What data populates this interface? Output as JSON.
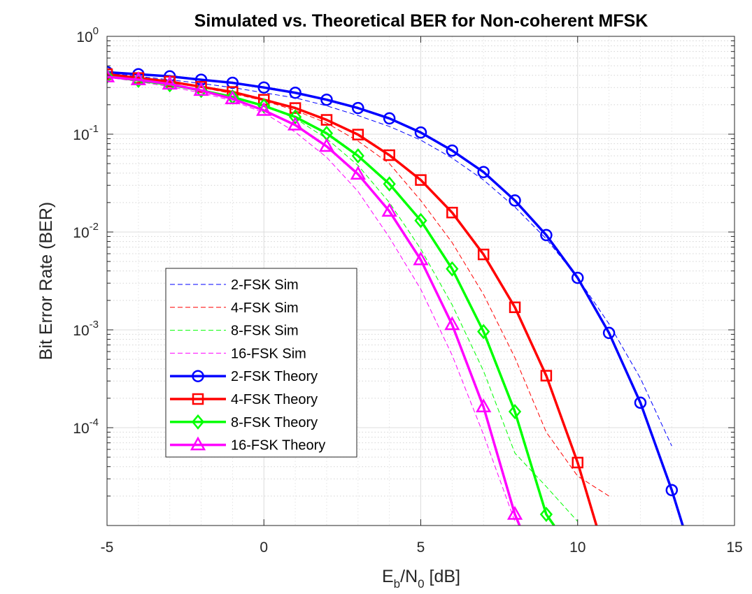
{
  "chart_data": {
    "type": "line",
    "title": "Simulated vs. Theoretical BER for Non-coherent MFSK",
    "xlabel": {
      "main": "E",
      "sub1": "b",
      "mid": "/N",
      "sub2": "0",
      "tail": " [dB]"
    },
    "ylabel": "Bit Error Rate (BER)",
    "xlim": [
      -5,
      15
    ],
    "ylim": [
      1e-05,
      1
    ],
    "yscale": "log",
    "grid": true,
    "minor_grid": true,
    "legend_position": "lower-left",
    "x_ticks": [
      "-5",
      "0",
      "5",
      "10",
      "15"
    ],
    "y_ticks": [
      {
        "base": "10",
        "exp": "0",
        "value": 1
      },
      {
        "base": "10",
        "exp": "-1",
        "value": 0.1
      },
      {
        "base": "10",
        "exp": "-2",
        "value": 0.01
      },
      {
        "base": "10",
        "exp": "-3",
        "value": 0.001
      },
      {
        "base": "10",
        "exp": "-4",
        "value": 0.0001
      }
    ],
    "series": [
      {
        "name": "2-FSK Sim",
        "style": "dashed",
        "color": "#0000ff",
        "marker": "none",
        "x": [
          -5,
          -4,
          -3,
          -2,
          -1,
          0,
          1,
          2,
          3,
          4,
          5,
          6,
          7,
          8,
          9,
          10,
          11,
          12,
          13
        ],
        "y": [
          0.42,
          0.39,
          0.36,
          0.33,
          0.3,
          0.265,
          0.235,
          0.195,
          0.155,
          0.12,
          0.087,
          0.057,
          0.034,
          0.018,
          0.0085,
          0.0034,
          0.00115,
          0.00032,
          6.5e-05
        ]
      },
      {
        "name": "4-FSK Sim",
        "style": "dashed",
        "color": "#ff0000",
        "marker": "none",
        "x": [
          -5,
          -4,
          -3,
          -2,
          -1,
          0,
          1,
          2,
          3,
          4,
          5,
          6,
          7,
          8,
          9,
          10,
          11
        ],
        "y": [
          0.4,
          0.37,
          0.335,
          0.3,
          0.26,
          0.22,
          0.175,
          0.13,
          0.085,
          0.05,
          0.021,
          0.0078,
          0.0023,
          0.00052,
          9e-05,
          3.2e-05,
          2e-05
        ]
      },
      {
        "name": "8-FSK Sim",
        "style": "dashed",
        "color": "#00ff00",
        "marker": "none",
        "x": [
          -5,
          -4,
          -3,
          -2,
          -1,
          0,
          1,
          2,
          3,
          4,
          5,
          6,
          7,
          8,
          9,
          10
        ],
        "y": [
          0.39,
          0.36,
          0.32,
          0.285,
          0.24,
          0.195,
          0.145,
          0.09,
          0.048,
          0.02,
          0.0067,
          0.0018,
          0.00038,
          5.5e-05,
          2.5e-05,
          1.1e-05
        ]
      },
      {
        "name": "16-FSK Sim",
        "style": "dashed",
        "color": "#ff00ff",
        "marker": "none",
        "x": [
          -5,
          -4,
          -3,
          -2,
          -1,
          0,
          1,
          2,
          3,
          4,
          5,
          6,
          7,
          8
        ],
        "y": [
          0.38,
          0.345,
          0.305,
          0.265,
          0.22,
          0.165,
          0.105,
          0.058,
          0.026,
          0.0088,
          0.0026,
          0.00055,
          8.5e-05,
          1.1e-05
        ]
      },
      {
        "name": "2-FSK Theory",
        "style": "solid",
        "color": "#0000ff",
        "marker": "circle",
        "x": [
          -5,
          -4,
          -3,
          -2,
          -1,
          0,
          1,
          2,
          3,
          4,
          5,
          6,
          7,
          8,
          9,
          10,
          11,
          12,
          13
        ],
        "y": [
          0.43,
          0.41,
          0.39,
          0.36,
          0.335,
          0.3,
          0.265,
          0.225,
          0.185,
          0.145,
          0.104,
          0.068,
          0.041,
          0.021,
          0.0093,
          0.0034,
          0.00093,
          0.00018,
          2.3e-05
        ],
        "line_end": [
          13.35,
          1e-05
        ]
      },
      {
        "name": "4-FSK Theory",
        "style": "solid",
        "color": "#ff0000",
        "marker": "square",
        "x": [
          -5,
          -4,
          -3,
          -2,
          -1,
          0,
          1,
          2,
          3,
          4,
          5,
          6,
          7,
          8,
          9,
          10
        ],
        "y": [
          0.41,
          0.375,
          0.345,
          0.305,
          0.27,
          0.225,
          0.185,
          0.14,
          0.099,
          0.061,
          0.034,
          0.0158,
          0.0059,
          0.0017,
          0.00034,
          4.4e-05
        ],
        "line_end": [
          10.6,
          1e-05
        ]
      },
      {
        "name": "8-FSK Theory",
        "style": "solid",
        "color": "#00ff00",
        "marker": "diamond",
        "x": [
          -5,
          -4,
          -3,
          -2,
          -1,
          0,
          1,
          2,
          3,
          4,
          5,
          6,
          7,
          8,
          9
        ],
        "y": [
          0.39,
          0.355,
          0.32,
          0.28,
          0.24,
          0.195,
          0.15,
          0.102,
          0.06,
          0.031,
          0.0131,
          0.0042,
          0.00096,
          0.000146,
          1.3e-05
        ],
        "line_end": [
          9.25,
          1e-05
        ]
      },
      {
        "name": "16-FSK Theory",
        "style": "solid",
        "color": "#ff00ff",
        "marker": "triangle",
        "x": [
          -5,
          -4,
          -3,
          -2,
          -1,
          0,
          1,
          2,
          3,
          4,
          5,
          6,
          7,
          8
        ],
        "y": [
          0.385,
          0.36,
          0.325,
          0.28,
          0.23,
          0.175,
          0.124,
          0.075,
          0.039,
          0.0163,
          0.0052,
          0.00113,
          0.000163,
          1.3e-05
        ],
        "line_end": [
          8.15,
          1e-05
        ]
      }
    ]
  }
}
